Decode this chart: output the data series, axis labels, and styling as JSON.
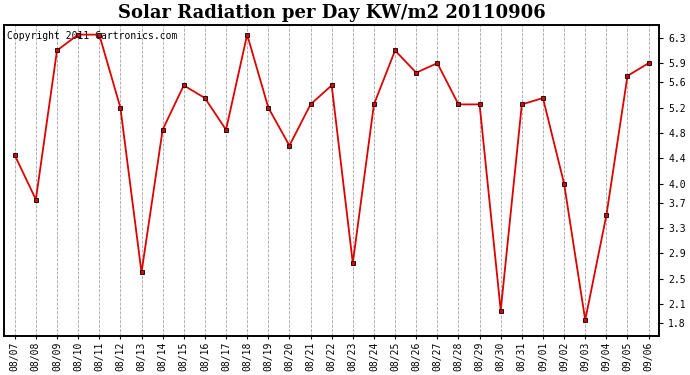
{
  "title": "Solar Radiation per Day KW/m2 20110906",
  "copyright_text": "Copyright 2011 Cartronics.com",
  "dates": [
    "08/07",
    "08/08",
    "08/09",
    "08/10",
    "08/11",
    "08/12",
    "08/13",
    "08/14",
    "08/15",
    "08/16",
    "08/17",
    "08/18",
    "08/19",
    "08/20",
    "08/21",
    "08/22",
    "08/23",
    "08/24",
    "08/25",
    "08/26",
    "08/27",
    "08/28",
    "08/29",
    "08/30",
    "08/31",
    "09/01",
    "09/02",
    "09/03",
    "09/04",
    "09/05",
    "09/06"
  ],
  "values": [
    4.45,
    3.75,
    6.1,
    6.35,
    6.35,
    5.2,
    2.6,
    4.85,
    5.55,
    5.35,
    4.85,
    6.35,
    5.2,
    4.6,
    5.25,
    5.55,
    2.75,
    5.25,
    6.1,
    5.75,
    5.9,
    5.25,
    5.25,
    2.0,
    5.25,
    5.35,
    4.0,
    1.85,
    3.5,
    5.7,
    5.9
  ],
  "line_color": "#dd0000",
  "marker": "s",
  "marker_size": 3.5,
  "marker_edge_color": "#000000",
  "background_color": "#ffffff",
  "grid_color": "#999999",
  "grid_style": "--",
  "yticks": [
    1.8,
    2.1,
    2.5,
    2.9,
    3.3,
    3.7,
    4.0,
    4.4,
    4.8,
    5.2,
    5.6,
    5.9,
    6.3
  ],
  "ylim": [
    1.6,
    6.5
  ],
  "title_fontsize": 13,
  "tick_fontsize": 7,
  "copyright_fontsize": 7
}
